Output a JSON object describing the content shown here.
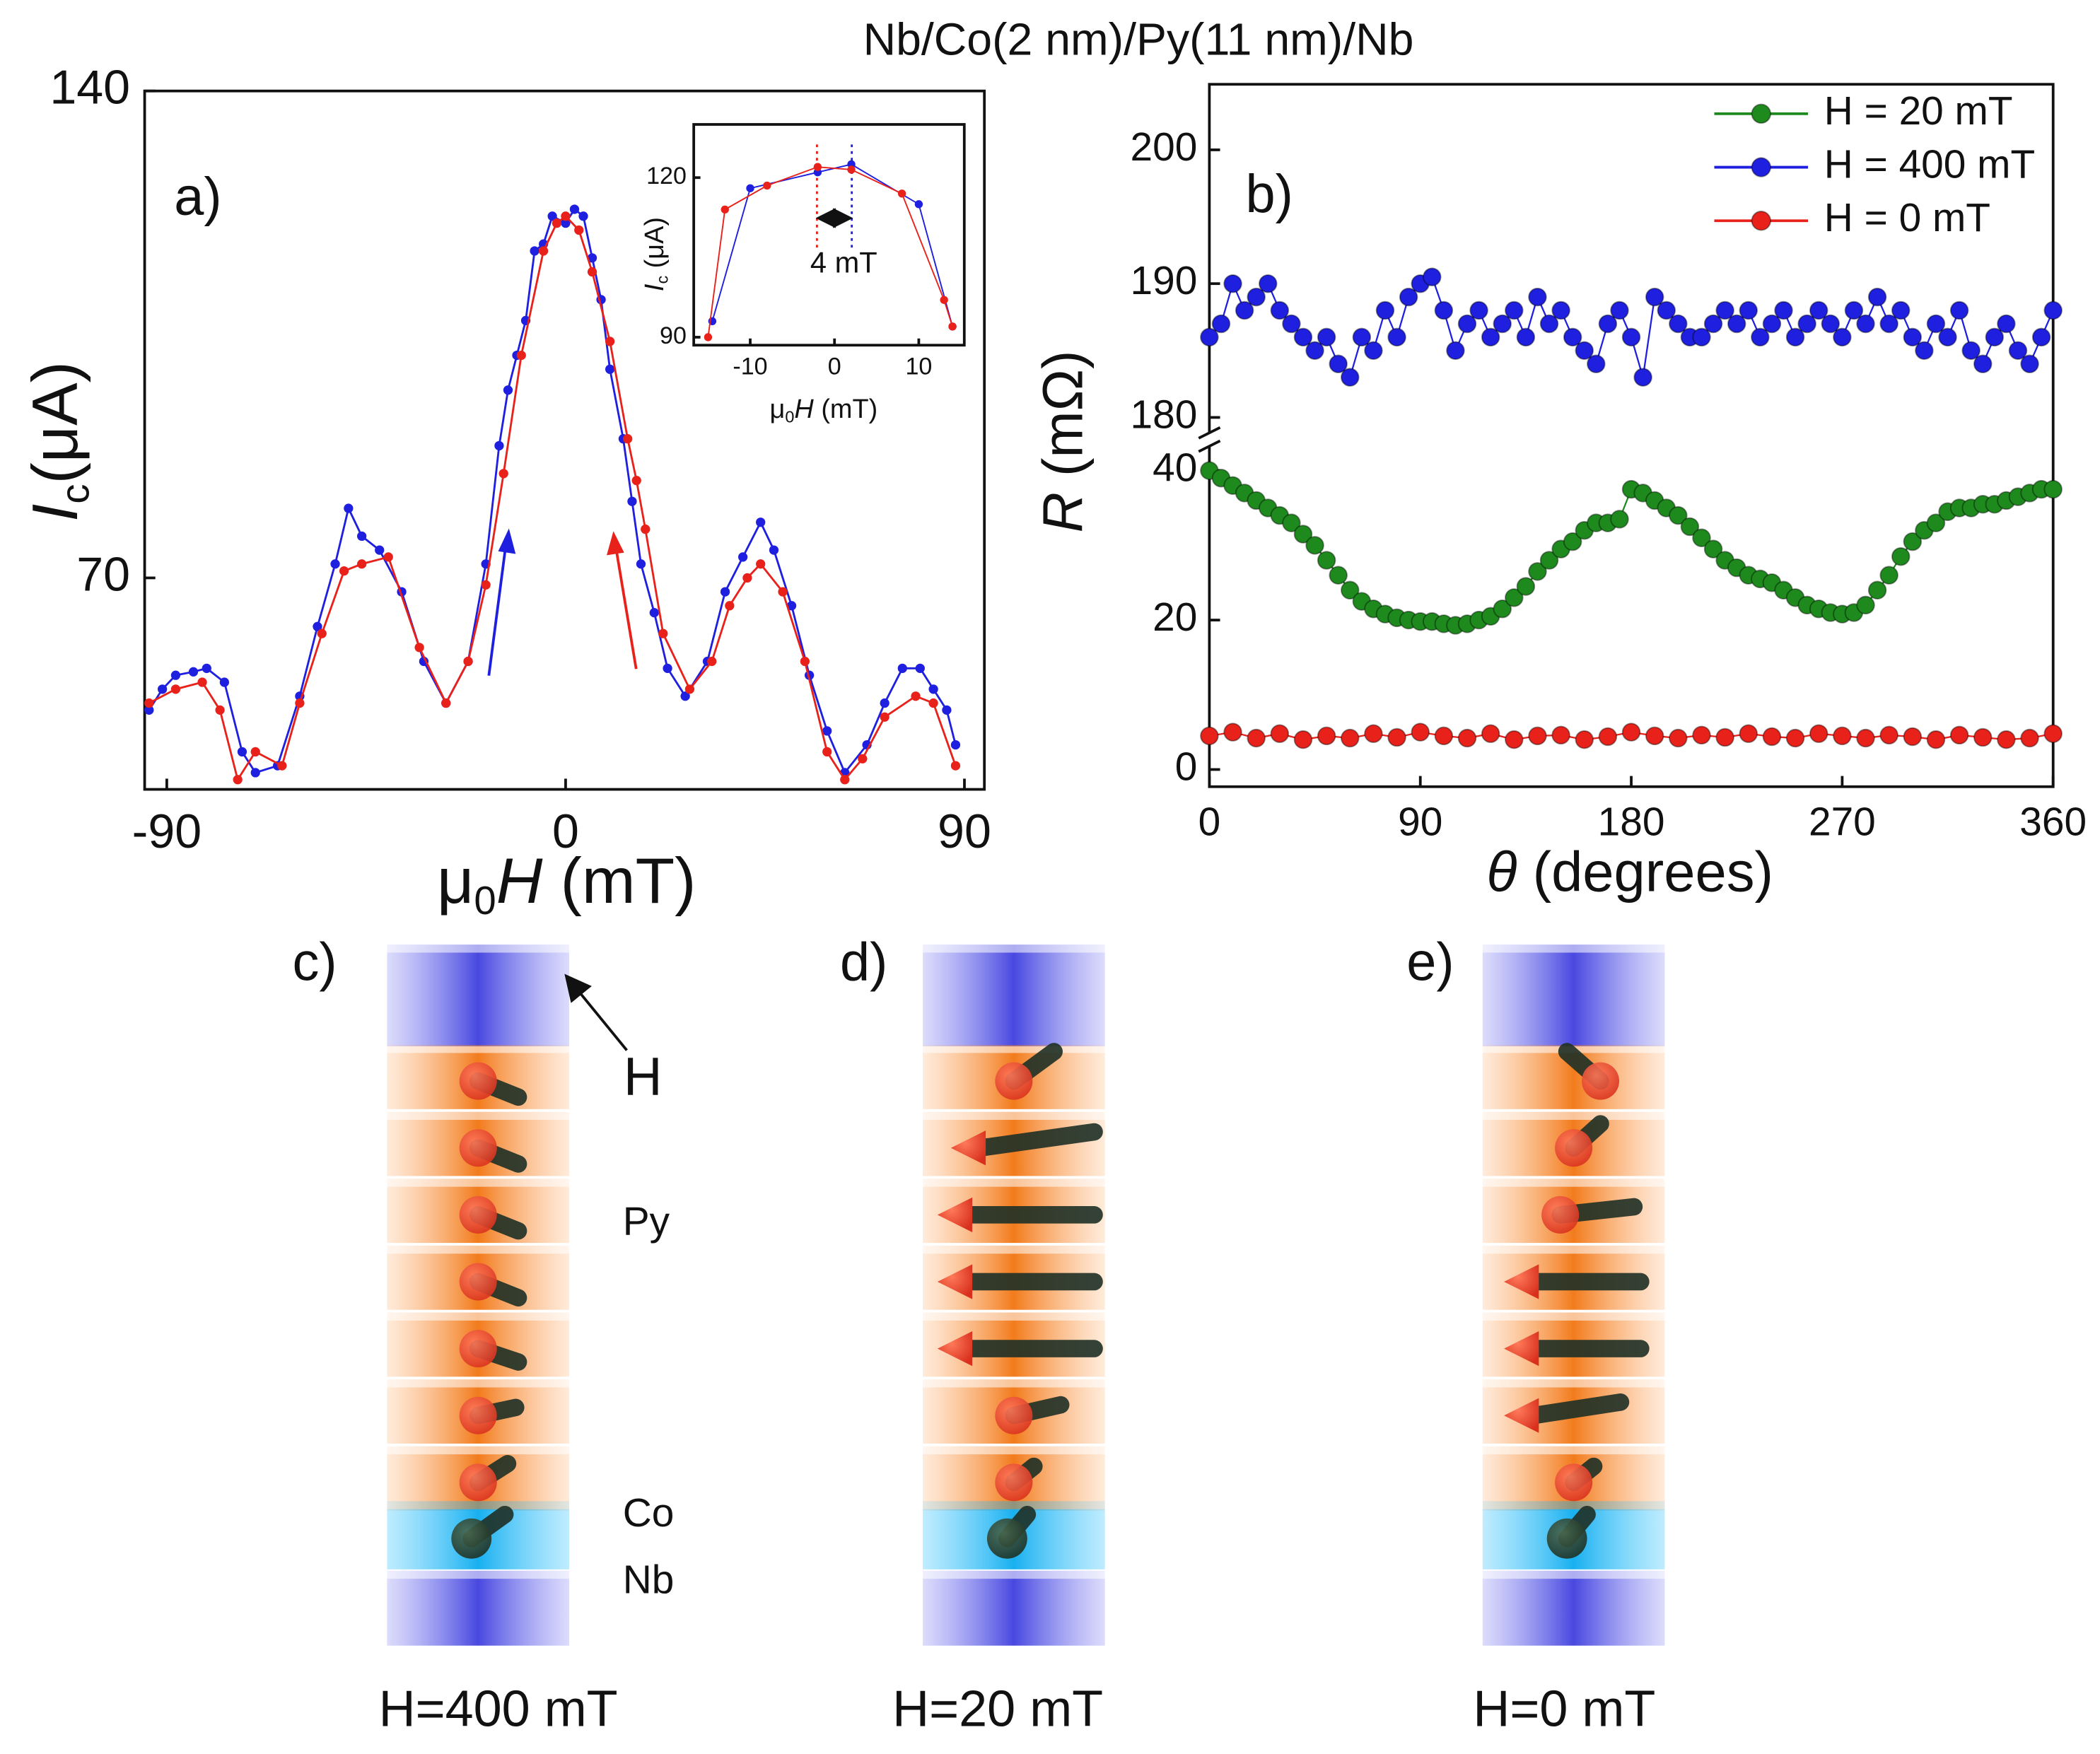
{
  "title": "Nb/Co(2 nm)/Py(11 nm)/Nb",
  "chart_data": [
    {
      "type": "line",
      "panel_label": "a)",
      "xlabel": [
        "μ",
        "0",
        "H",
        " (mT)"
      ],
      "ylabel": [
        "I",
        "c",
        "(μA)"
      ],
      "xlim": [
        -95,
        94.5
      ],
      "xticks": [
        -90,
        0,
        90
      ],
      "ylim": [
        39.6,
        140
      ],
      "yticks": [
        70,
        140
      ],
      "series": [
        {
          "color": "#1f1fdf",
          "x": [
            -94,
            -91,
            -88,
            -84,
            -81,
            -77,
            -73,
            -70,
            -65,
            -60,
            -56,
            -52,
            -49,
            -46,
            -42,
            -37,
            -32,
            -27,
            -22,
            -18,
            -15,
            -13,
            -11,
            -9,
            -7,
            -5,
            -3,
            0,
            2,
            4,
            6,
            8,
            10,
            13,
            15,
            17,
            20,
            23,
            27,
            32,
            36,
            40,
            44,
            47,
            51,
            55,
            59,
            63,
            68,
            72,
            76,
            80,
            83,
            86,
            88
          ],
          "values": [
            51,
            54,
            56,
            56.5,
            57,
            55,
            45,
            42,
            43,
            53,
            63,
            72,
            80,
            76,
            74,
            68,
            58,
            52,
            58,
            72,
            89,
            97,
            102,
            107,
            117,
            118,
            122,
            121,
            123,
            122,
            116,
            110,
            100,
            90,
            81,
            72,
            65,
            57,
            53,
            58,
            68,
            73,
            78,
            74,
            66,
            56,
            48,
            42,
            46,
            52,
            57,
            57,
            54,
            51,
            46
          ]
        },
        {
          "color": "#e8221b",
          "x": [
            -94,
            -88,
            -82,
            -78,
            -74,
            -70,
            -64,
            -60,
            -55,
            -50,
            -46,
            -40,
            -33,
            -27,
            -22,
            -18,
            -14,
            -10,
            -5,
            -2,
            0,
            3,
            6,
            10,
            14,
            16,
            18,
            22,
            28,
            33,
            37,
            41,
            44,
            49,
            54,
            59,
            63,
            67,
            72,
            79,
            83,
            88
          ],
          "values": [
            52,
            54,
            55,
            51,
            41,
            45,
            43,
            52,
            62,
            71,
            72,
            73,
            60,
            52,
            58,
            69,
            85,
            102,
            117,
            121,
            122,
            120,
            114,
            104,
            90,
            84,
            77,
            62,
            54,
            58,
            66,
            70,
            72,
            68,
            58,
            45,
            41,
            44,
            50,
            53,
            52,
            43
          ]
        }
      ]
    },
    {
      "type": "line",
      "annotation": "4 mT",
      "xlabel": [
        "μ",
        "0",
        "H",
        " (mT)"
      ],
      "ylabel": [
        "I",
        "c",
        " (μA)"
      ],
      "xlim": [
        -16.7,
        15.4
      ],
      "xticks": [
        -10,
        0,
        10
      ],
      "ylim": [
        88.5,
        130
      ],
      "yticks": [
        90,
        120
      ],
      "series": [
        {
          "color": "#1f1fdf",
          "x": [
            -14.5,
            -10,
            -2,
            2,
            10,
            14
          ],
          "values": [
            93,
            118,
            121,
            122.5,
            115,
            92
          ]
        },
        {
          "color": "#e8221b",
          "x": [
            -15,
            -13,
            -8,
            -2,
            2,
            8,
            13,
            14
          ],
          "values": [
            90,
            114,
            118.5,
            122,
            121.5,
            117,
            97,
            92
          ]
        }
      ]
    },
    {
      "type": "line",
      "panel_label": "b)",
      "legend": "upper right",
      "xlabel": [
        "θ",
        " (degrees)"
      ],
      "ylabel": [
        "R",
        " (mΩ)"
      ],
      "xlim": [
        0,
        360
      ],
      "xticks": [
        0,
        90,
        180,
        270,
        360
      ],
      "ylim": [
        -2.3,
        204.9
      ],
      "axis_break": [
        43,
        179
      ],
      "yticks": [
        0,
        20,
        40,
        180,
        190,
        200
      ],
      "series": [
        {
          "name": "H = 20 mT",
          "color": "#1e8a1e",
          "x": [
            0,
            5,
            10,
            15,
            20,
            25,
            30,
            35,
            40,
            45,
            50,
            55,
            60,
            65,
            70,
            75,
            80,
            85,
            90,
            95,
            100,
            105,
            110,
            115,
            120,
            125,
            130,
            135,
            140,
            145,
            150,
            155,
            160,
            165,
            170,
            175,
            180,
            185,
            190,
            195,
            200,
            205,
            210,
            215,
            220,
            225,
            230,
            235,
            240,
            245,
            250,
            255,
            260,
            265,
            270,
            275,
            280,
            285,
            290,
            295,
            300,
            305,
            310,
            315,
            320,
            325,
            330,
            335,
            340,
            345,
            350,
            355,
            360
          ],
          "values": [
            40,
            39,
            38,
            37,
            36,
            35,
            34,
            33,
            31.5,
            30,
            28,
            26,
            24,
            22.5,
            21.5,
            20.8,
            20.3,
            20,
            19.8,
            19.8,
            19.5,
            19.3,
            19.5,
            20,
            20.5,
            21.5,
            23,
            24.5,
            26.5,
            28,
            29.5,
            30.5,
            32,
            33,
            33,
            33.5,
            37.5,
            37,
            36,
            35,
            34,
            32.5,
            31,
            29.5,
            28,
            27,
            26,
            25.5,
            25,
            24,
            23,
            22,
            21.5,
            21,
            20.8,
            21,
            22,
            24,
            26,
            28.5,
            30.5,
            32,
            33,
            34.5,
            35,
            35,
            35.5,
            35.5,
            36,
            36.5,
            37,
            37.5,
            37.5
          ]
        },
        {
          "name": "H = 400 mT",
          "color": "#1f1fdf",
          "x": [
            0,
            5,
            10,
            15,
            20,
            25,
            30,
            35,
            40,
            45,
            50,
            55,
            60,
            65,
            70,
            75,
            80,
            85,
            90,
            95,
            100,
            105,
            110,
            115,
            120,
            125,
            130,
            135,
            140,
            145,
            150,
            155,
            160,
            165,
            170,
            175,
            180,
            185,
            190,
            195,
            200,
            205,
            210,
            215,
            220,
            225,
            230,
            235,
            240,
            245,
            250,
            255,
            260,
            265,
            270,
            275,
            280,
            285,
            290,
            295,
            300,
            305,
            310,
            315,
            320,
            325,
            330,
            335,
            340,
            345,
            350,
            355,
            360
          ],
          "values": [
            186,
            187,
            190,
            188,
            189,
            190,
            188,
            187,
            186,
            185,
            186,
            184,
            183,
            186,
            185,
            188,
            186,
            189,
            190,
            190.5,
            188,
            185,
            187,
            188,
            186,
            187,
            188,
            186,
            189,
            187,
            188,
            186,
            185,
            184,
            187,
            188,
            186,
            183,
            189,
            188,
            187,
            186,
            186,
            187,
            188,
            187,
            188,
            186,
            187,
            188,
            186,
            187,
            188,
            187,
            186,
            188,
            187,
            189,
            187,
            188,
            186,
            185,
            187,
            186,
            188,
            185,
            184,
            186,
            187,
            185,
            184,
            186,
            188
          ]
        },
        {
          "name": "H = 0 mT",
          "color": "#e8221b",
          "x": [
            0,
            10,
            20,
            30,
            40,
            50,
            60,
            70,
            80,
            90,
            100,
            110,
            120,
            130,
            140,
            150,
            160,
            170,
            180,
            190,
            200,
            210,
            220,
            230,
            240,
            250,
            260,
            270,
            280,
            290,
            300,
            310,
            320,
            330,
            340,
            350,
            360
          ],
          "values": [
            4.5,
            5,
            4.2,
            4.8,
            4,
            4.5,
            4.2,
            4.8,
            4.3,
            5,
            4.5,
            4.2,
            4.8,
            4,
            4.5,
            4.6,
            4,
            4.4,
            5,
            4.5,
            4.2,
            4.6,
            4.3,
            4.8,
            4.4,
            4.2,
            4.8,
            4.5,
            4.2,
            4.6,
            4.4,
            4,
            4.6,
            4.3,
            4,
            4.2,
            4.8
          ]
        }
      ]
    }
  ],
  "diagram": {
    "field": "H",
    "py": "Py",
    "co": "Co",
    "nb": "Nb",
    "panels": [
      {
        "label": "c)",
        "caption": "H=400 mT"
      },
      {
        "label": "d)",
        "caption": "H=20 mT"
      },
      {
        "label": "e)",
        "caption": "H=0 mT"
      }
    ]
  }
}
